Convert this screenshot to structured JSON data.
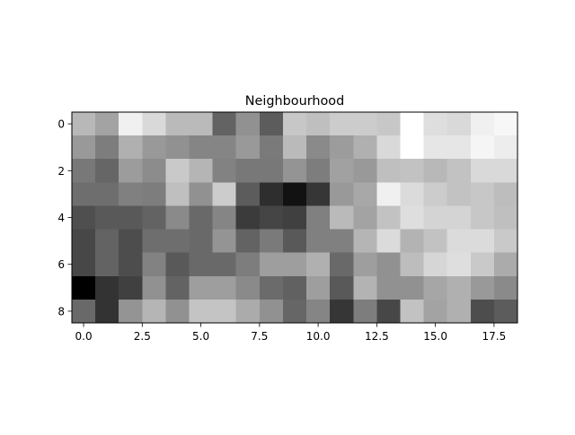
{
  "chart_data": {
    "type": "heatmap",
    "title": "Neighbourhood",
    "xlabel": "",
    "ylabel": "",
    "colormap": "gray",
    "grid": false,
    "xlim": [
      -0.5,
      18.5
    ],
    "ylim": [
      8.5,
      -0.5
    ],
    "xticks": [
      0.0,
      2.5,
      5.0,
      7.5,
      10.0,
      12.5,
      15.0,
      17.5
    ],
    "xtick_labels": [
      "0.0",
      "2.5",
      "5.0",
      "7.5",
      "10.0",
      "12.5",
      "15.0",
      "17.5"
    ],
    "yticks": [
      0,
      2,
      4,
      6,
      8
    ],
    "ytick_labels": [
      "0",
      "2",
      "4",
      "6",
      "8"
    ],
    "vmin": 0,
    "vmax": 1,
    "values": [
      [
        0.72,
        0.64,
        0.94,
        0.85,
        0.73,
        0.73,
        0.39,
        0.57,
        0.36,
        0.78,
        0.75,
        0.8,
        0.8,
        0.78,
        1.0,
        0.87,
        0.85,
        0.94,
        0.97
      ],
      [
        0.6,
        0.49,
        0.69,
        0.6,
        0.57,
        0.52,
        0.52,
        0.6,
        0.48,
        0.73,
        0.54,
        0.61,
        0.69,
        0.85,
        1.0,
        0.9,
        0.9,
        0.96,
        0.93
      ],
      [
        0.47,
        0.4,
        0.61,
        0.55,
        0.79,
        0.71,
        0.51,
        0.47,
        0.47,
        0.58,
        0.49,
        0.63,
        0.6,
        0.75,
        0.76,
        0.72,
        0.76,
        0.85,
        0.85
      ],
      [
        0.43,
        0.43,
        0.5,
        0.49,
        0.75,
        0.57,
        0.8,
        0.36,
        0.18,
        0.07,
        0.21,
        0.6,
        0.66,
        0.94,
        0.86,
        0.8,
        0.76,
        0.78,
        0.74
      ],
      [
        0.31,
        0.35,
        0.35,
        0.39,
        0.54,
        0.41,
        0.52,
        0.23,
        0.27,
        0.25,
        0.5,
        0.73,
        0.64,
        0.76,
        0.87,
        0.83,
        0.83,
        0.78,
        0.75
      ],
      [
        0.28,
        0.39,
        0.3,
        0.43,
        0.43,
        0.41,
        0.58,
        0.39,
        0.48,
        0.35,
        0.5,
        0.5,
        0.71,
        0.86,
        0.7,
        0.76,
        0.86,
        0.86,
        0.79
      ],
      [
        0.28,
        0.39,
        0.3,
        0.51,
        0.35,
        0.41,
        0.41,
        0.49,
        0.62,
        0.62,
        0.69,
        0.41,
        0.62,
        0.57,
        0.74,
        0.84,
        0.87,
        0.79,
        0.67
      ],
      [
        0.0,
        0.2,
        0.25,
        0.57,
        0.39,
        0.62,
        0.62,
        0.54,
        0.42,
        0.38,
        0.62,
        0.35,
        0.7,
        0.57,
        0.57,
        0.65,
        0.69,
        0.6,
        0.54
      ],
      [
        0.41,
        0.2,
        0.58,
        0.71,
        0.57,
        0.77,
        0.77,
        0.67,
        0.57,
        0.4,
        0.52,
        0.21,
        0.49,
        0.28,
        0.76,
        0.64,
        0.69,
        0.3,
        0.36
      ]
    ]
  }
}
